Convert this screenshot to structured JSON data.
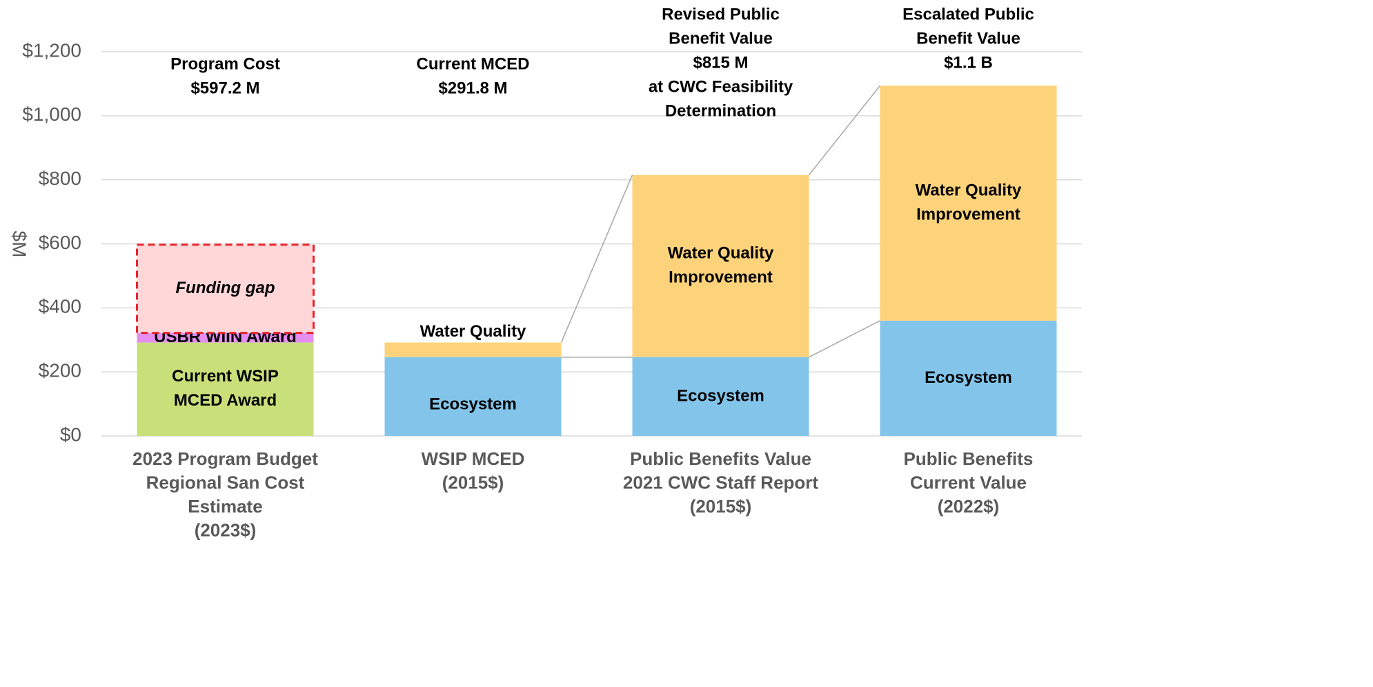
{
  "chart_data": {
    "type": "stacked_bar",
    "y_label": "$M",
    "categories": [
      [
        "2023 Program Budget",
        "Regional San Cost",
        "Estimate",
        "(2023$)"
      ],
      [
        "WSIP MCED",
        "(2015$)"
      ],
      [
        "Public Benefits Value",
        "2021 CWC Staff Report",
        "(2015$)"
      ],
      [
        "Public Benefits",
        "Current Value",
        "(2022$)"
      ]
    ],
    "annotations": [
      [
        "Program Cost",
        "$597.2 M"
      ],
      [
        "Current MCED",
        "$291.8 M"
      ],
      [
        "Revised Public",
        "Benefit Value",
        "$815 M",
        "at CWC Feasibility",
        "Determination"
      ],
      [
        "Escalated Public",
        "Benefit Value",
        "$1.1 B"
      ]
    ],
    "series": [
      {
        "color": "#c9df7a",
        "values": [
          291.8,
          null,
          null,
          null
        ],
        "labels": [
          [
            "Current WSIP",
            "MCED Award"
          ],
          null,
          null,
          null
        ]
      },
      {
        "color": "#e58ef0",
        "values": [
          30,
          null,
          null,
          null
        ],
        "labels": [
          [
            "USBR WIIN Award"
          ],
          null,
          null,
          null
        ]
      },
      {
        "color": "#ffd7d9",
        "outline": "#e8242b",
        "dashed": true,
        "italic": true,
        "values": [
          275.4,
          null,
          null,
          null
        ],
        "labels": [
          [
            "Funding gap"
          ],
          null,
          null,
          null
        ]
      },
      {
        "color": "#83c5ea",
        "values": [
          null,
          246,
          246,
          360
        ],
        "labels": [
          null,
          [
            "Ecosystem"
          ],
          [
            "Ecosystem"
          ],
          [
            "Ecosystem"
          ]
        ]
      },
      {
        "color": "#fcd27a",
        "values": [
          null,
          45.8,
          569,
          734
        ],
        "labels": [
          null,
          [
            "Water Quality"
          ],
          [
            "Water Quality",
            "Improvement"
          ],
          [
            "Water Quality",
            "Improvement"
          ]
        ]
      }
    ],
    "ylim": [
      0,
      1200
    ],
    "yticks": [
      {
        "value": 0,
        "label": "$0"
      },
      {
        "value": 200,
        "label": "$200"
      },
      {
        "value": 400,
        "label": "$400"
      },
      {
        "value": 600,
        "label": "$600"
      },
      {
        "value": 800,
        "label": "$800"
      },
      {
        "value": 1000,
        "label": "$1,000"
      },
      {
        "value": 1200,
        "label": "$1,200"
      }
    ],
    "grid": true
  }
}
